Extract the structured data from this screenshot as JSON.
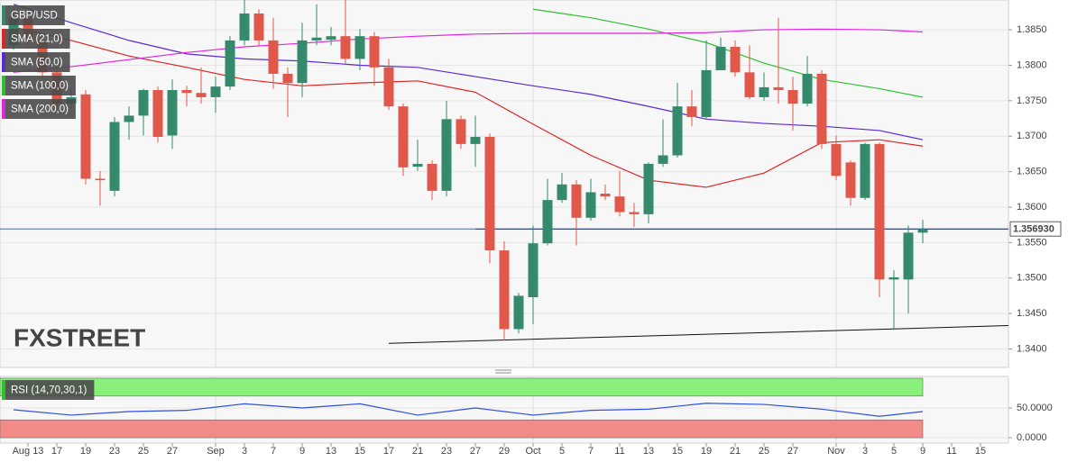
{
  "chart_data": [
    {
      "type": "candlestick",
      "categories": [
        "Aug 12",
        "Aug 13",
        "Aug 16",
        "Aug 17",
        "Aug 18",
        "Aug 19",
        "Aug 20",
        "Aug 23",
        "Aug 24",
        "Aug 25",
        "Aug 26",
        "Aug 27",
        "Aug 30",
        "Aug 31",
        "Sep 1",
        "Sep 2",
        "Sep 3",
        "Sep 6",
        "Sep 7",
        "Sep 8",
        "Sep 9",
        "Sep 10",
        "Sep 13",
        "Sep 14",
        "Sep 15",
        "Sep 16",
        "Sep 17",
        "Sep 20",
        "Sep 21",
        "Sep 22",
        "Sep 23",
        "Sep 24",
        "Sep 27",
        "Sep 28",
        "Sep 29",
        "Sep 30",
        "Oct 1",
        "Oct 4",
        "Oct 5",
        "Oct 6",
        "Oct 7",
        "Oct 8",
        "Oct 11",
        "Oct 12",
        "Oct 13",
        "Oct 14",
        "Oct 15",
        "Oct 18",
        "Oct 19",
        "Oct 20",
        "Oct 21",
        "Oct 22",
        "Oct 25",
        "Oct 26",
        "Oct 27",
        "Oct 28",
        "Oct 29",
        "Nov 1",
        "Nov 2",
        "Nov 3",
        "Nov 4",
        "Nov 5",
        "Nov 8",
        "Nov 9",
        "Nov 10",
        "Nov 11",
        "Nov 12",
        "Nov 15",
        "Nov 16",
        "Nov 17"
      ],
      "ohlc": {
        "name": "GBP/USD",
        "up_color": "#358a6c",
        "down_color": "#e0584a",
        "legend_color": "#358a6c",
        "open": [
          1.3828,
          1.3867,
          1.3835,
          1.379,
          1.3746,
          1.3759,
          1.364,
          1.3623,
          1.372,
          1.3729,
          1.3765,
          1.3701,
          1.3765,
          1.3761,
          1.3755,
          1.377,
          1.3835,
          1.3873,
          1.3835,
          1.3788,
          1.3775,
          1.3835,
          1.3836,
          1.3841,
          1.3809,
          1.3841,
          1.3797,
          1.3742,
          1.3657,
          1.3661,
          1.3623,
          1.3724,
          1.3689,
          1.3699,
          1.3539,
          1.3428,
          1.3473,
          1.3549,
          1.361,
          1.3632,
          1.3585,
          1.3619,
          1.3615,
          1.3593,
          1.359,
          1.3661,
          1.3673,
          1.3742,
          1.3727,
          1.3793,
          1.3826,
          1.379,
          1.3755,
          1.3769,
          1.3765,
          1.3746,
          1.3788,
          1.3689,
          1.3663,
          1.3613,
          1.3689,
          1.3498,
          1.3498,
          1.3564,
          null,
          null,
          null,
          null,
          null,
          null
        ],
        "high": [
          1.3879,
          1.3873,
          1.3841,
          1.3797,
          1.3765,
          1.3765,
          1.3651,
          1.3727,
          1.3742,
          1.3767,
          1.377,
          1.378,
          1.3771,
          1.3797,
          1.3784,
          1.3841,
          1.3892,
          1.3879,
          1.3867,
          1.3797,
          1.386,
          1.3886,
          1.3854,
          1.3892,
          1.3851,
          1.3847,
          1.3809,
          1.3746,
          1.3695,
          1.3666,
          1.375,
          1.3729,
          1.3729,
          1.3704,
          1.3552,
          1.3479,
          1.3574,
          1.364,
          1.3648,
          1.3638,
          1.364,
          1.3632,
          1.3651,
          1.3606,
          1.3663,
          1.3724,
          1.3775,
          1.3765,
          1.3835,
          1.3839,
          1.3835,
          1.3828,
          1.379,
          1.3867,
          1.3784,
          1.3813,
          1.3793,
          1.3701,
          1.3666,
          1.3691,
          1.3691,
          1.3511,
          1.3574,
          1.3582,
          null,
          null,
          null,
          null,
          null,
          null
        ],
        "low": [
          1.3822,
          1.3828,
          1.3778,
          1.374,
          1.374,
          1.3632,
          1.3602,
          1.3615,
          1.3695,
          1.3701,
          1.3691,
          1.3682,
          1.3742,
          1.3746,
          1.3733,
          1.3765,
          1.3828,
          1.3828,
          1.3767,
          1.3727,
          1.3755,
          1.3828,
          1.3828,
          1.3803,
          1.3793,
          1.3771,
          1.3737,
          1.3644,
          1.3651,
          1.361,
          1.3615,
          1.3682,
          1.3657,
          1.3521,
          1.3412,
          1.3422,
          1.3435,
          1.3546,
          1.3606,
          1.3546,
          1.3581,
          1.361,
          1.3587,
          1.3572,
          1.3577,
          1.3657,
          1.367,
          1.3714,
          1.3724,
          1.3793,
          1.3784,
          1.3752,
          1.375,
          1.3746,
          1.3708,
          1.3742,
          1.3682,
          1.3638,
          1.3602,
          1.361,
          1.3473,
          1.3427,
          1.345,
          1.3549,
          null,
          null,
          null,
          null,
          null,
          null
        ],
        "close": [
          1.3867,
          1.3835,
          1.379,
          1.3746,
          1.3755,
          1.364,
          1.3638,
          1.372,
          1.3729,
          1.3765,
          1.3699,
          1.3765,
          1.3761,
          1.3755,
          1.377,
          1.3835,
          1.3873,
          1.3835,
          1.3788,
          1.3775,
          1.3835,
          1.3839,
          1.3841,
          1.3809,
          1.3841,
          1.3797,
          1.3742,
          1.3656,
          1.3661,
          1.3623,
          1.3724,
          1.3689,
          1.3699,
          1.3539,
          1.3428,
          1.3475,
          1.3549,
          1.361,
          1.3632,
          1.3585,
          1.3621,
          1.3615,
          1.3593,
          1.359,
          1.3661,
          1.3673,
          1.3742,
          1.3727,
          1.3793,
          1.3826,
          1.379,
          1.3755,
          1.3769,
          1.3765,
          1.3746,
          1.3788,
          1.3689,
          1.3644,
          1.3613,
          1.3689,
          1.3498,
          1.3501,
          1.3564,
          1.3569,
          null,
          null,
          null,
          null,
          null,
          null
        ]
      },
      "series": [
        {
          "name": "SMA (21,0)",
          "color": "#e02424",
          "x": [
            "Aug 12",
            "Aug 18",
            "Aug 24",
            "Aug 30",
            "Sep 3",
            "Sep 9",
            "Sep 15",
            "Sep 21",
            "Sep 27",
            "Oct 1",
            "Oct 7",
            "Oct 13",
            "Oct 19",
            "Oct 25",
            "Oct 29",
            "Nov 4",
            "Nov 9"
          ],
          "values": [
            1.3854,
            1.3835,
            1.3813,
            1.3797,
            1.378,
            1.3771,
            1.3775,
            1.3778,
            1.3762,
            1.3717,
            1.3673,
            1.3638,
            1.3628,
            1.3648,
            1.3691,
            1.3695,
            1.3686
          ]
        },
        {
          "name": "SMA (50,0)",
          "color": "#5a2ad2",
          "x": [
            "Aug 12",
            "Aug 18",
            "Aug 24",
            "Aug 30",
            "Sep 3",
            "Sep 9",
            "Sep 15",
            "Sep 21",
            "Sep 27",
            "Oct 1",
            "Oct 7",
            "Oct 13",
            "Oct 19",
            "Oct 25",
            "Oct 29",
            "Nov 4",
            "Nov 9"
          ],
          "values": [
            1.3886,
            1.386,
            1.3835,
            1.3816,
            1.3809,
            1.3806,
            1.38,
            1.3797,
            1.3784,
            1.3771,
            1.3759,
            1.3742,
            1.3724,
            1.3718,
            1.3714,
            1.3708,
            1.3695
          ]
        },
        {
          "name": "SMA (100,0)",
          "color": "#2fc02f",
          "x": [
            "Oct 1",
            "Oct 7",
            "Oct 13",
            "Oct 19",
            "Oct 25",
            "Oct 29",
            "Nov 4",
            "Nov 9"
          ],
          "values": [
            1.3879,
            1.3867,
            1.3851,
            1.3832,
            1.3803,
            1.378,
            1.3767,
            1.3755
          ]
        },
        {
          "name": "SMA (200,0)",
          "color": "#e024e0",
          "x": [
            "Aug 12",
            "Aug 18",
            "Aug 24",
            "Aug 30",
            "Sep 3",
            "Sep 9",
            "Sep 15",
            "Sep 21",
            "Sep 27",
            "Oct 1",
            "Oct 7",
            "Oct 13",
            "Oct 19",
            "Oct 25",
            "Oct 29",
            "Nov 4",
            "Nov 9"
          ],
          "values": [
            1.379,
            1.3798,
            1.3808,
            1.3818,
            1.3826,
            1.3831,
            1.3837,
            1.3841,
            1.3844,
            1.3845,
            1.3845,
            1.3845,
            1.3846,
            1.385,
            1.3851,
            1.385,
            1.3847
          ]
        }
      ],
      "lines": [
        {
          "color": "#111111",
          "x": [
            "Sep 27",
            "Nov 17"
          ],
          "values": [
            1.3569,
            1.3569
          ]
        },
        {
          "color": "#111111",
          "x": [
            "Sep 17",
            "Nov 17"
          ],
          "values": [
            1.3408,
            1.3433
          ]
        }
      ],
      "last_price": {
        "value": 1.35693,
        "label": "1.356930",
        "color": "#2f4fb0"
      },
      "logo": [
        "FX",
        "STREET"
      ],
      "ylim": [
        1.3374,
        1.3892
      ],
      "yticks": [
        {
          "value": 1.34,
          "label": "1.3400"
        },
        {
          "value": 1.345,
          "label": "1.3450"
        },
        {
          "value": 1.35,
          "label": "1.3500"
        },
        {
          "value": 1.355,
          "label": "1.3550"
        },
        {
          "value": 1.36,
          "label": "1.3600"
        },
        {
          "value": 1.365,
          "label": "1.3650"
        },
        {
          "value": 1.37,
          "label": "1.3700"
        },
        {
          "value": 1.375,
          "label": "1.3750"
        },
        {
          "value": 1.38,
          "label": "1.3800"
        },
        {
          "value": 1.385,
          "label": "1.3850"
        }
      ],
      "grid": true,
      "separators": [
        "Sep 1",
        "Oct 1",
        "Nov 1"
      ],
      "xticks": [
        {
          "value": "Aug 13",
          "label": "Aug 13"
        },
        {
          "value": "Aug 17",
          "label": "17"
        },
        {
          "value": "Aug 19",
          "label": "19"
        },
        {
          "value": "Aug 23",
          "label": "23"
        },
        {
          "value": "Aug 25",
          "label": "25"
        },
        {
          "value": "Aug 27",
          "label": "27"
        },
        {
          "value": "Sep 1",
          "label": "Sep"
        },
        {
          "value": "Sep 3",
          "label": "3"
        },
        {
          "value": "Sep 7",
          "label": "7"
        },
        {
          "value": "Sep 9",
          "label": "9"
        },
        {
          "value": "Sep 13",
          "label": "13"
        },
        {
          "value": "Sep 15",
          "label": "15"
        },
        {
          "value": "Sep 17",
          "label": "17"
        },
        {
          "value": "Sep 21",
          "label": "21"
        },
        {
          "value": "Sep 23",
          "label": "23"
        },
        {
          "value": "Sep 27",
          "label": "27"
        },
        {
          "value": "Sep 29",
          "label": "29"
        },
        {
          "value": "Oct 1",
          "label": "Oct"
        },
        {
          "value": "Oct 5",
          "label": "5"
        },
        {
          "value": "Oct 7",
          "label": "7"
        },
        {
          "value": "Oct 11",
          "label": "11"
        },
        {
          "value": "Oct 13",
          "label": "13"
        },
        {
          "value": "Oct 15",
          "label": "15"
        },
        {
          "value": "Oct 19",
          "label": "19"
        },
        {
          "value": "Oct 21",
          "label": "21"
        },
        {
          "value": "Oct 25",
          "label": "25"
        },
        {
          "value": "Oct 27",
          "label": "27"
        },
        {
          "value": "Nov 1",
          "label": "Nov"
        },
        {
          "value": "Nov 3",
          "label": "3"
        },
        {
          "value": "Nov 5",
          "label": "5"
        },
        {
          "value": "Nov 9",
          "label": "9"
        },
        {
          "value": "Nov 11",
          "label": "11"
        },
        {
          "value": "Nov 15",
          "label": "15"
        }
      ]
    },
    {
      "type": "line",
      "series": [
        {
          "name": "RSI (14,70,30,1)",
          "color": "#2f4fe0",
          "legend_color": "#2fc02f",
          "x": [
            "Aug 12",
            "Aug 18",
            "Aug 24",
            "Aug 30",
            "Sep 3",
            "Sep 9",
            "Sep 15",
            "Sep 21",
            "Sep 27",
            "Oct 1",
            "Oct 7",
            "Oct 13",
            "Oct 19",
            "Oct 25",
            "Oct 29",
            "Nov 4",
            "Nov 9"
          ],
          "values": [
            47,
            38,
            44,
            46,
            57,
            50,
            57,
            38,
            50,
            38,
            46,
            48,
            58,
            56,
            48,
            36,
            44
          ]
        }
      ],
      "bands": [
        {
          "from": 70,
          "to": 100,
          "color": "#8af07c"
        },
        {
          "from": 0,
          "to": 30,
          "color": "#f28a88"
        }
      ],
      "ylim": [
        -9,
        103
      ],
      "yticks": [
        {
          "value": 0,
          "label": "0.0000"
        },
        {
          "value": 50,
          "label": "50.0000"
        }
      ]
    }
  ]
}
